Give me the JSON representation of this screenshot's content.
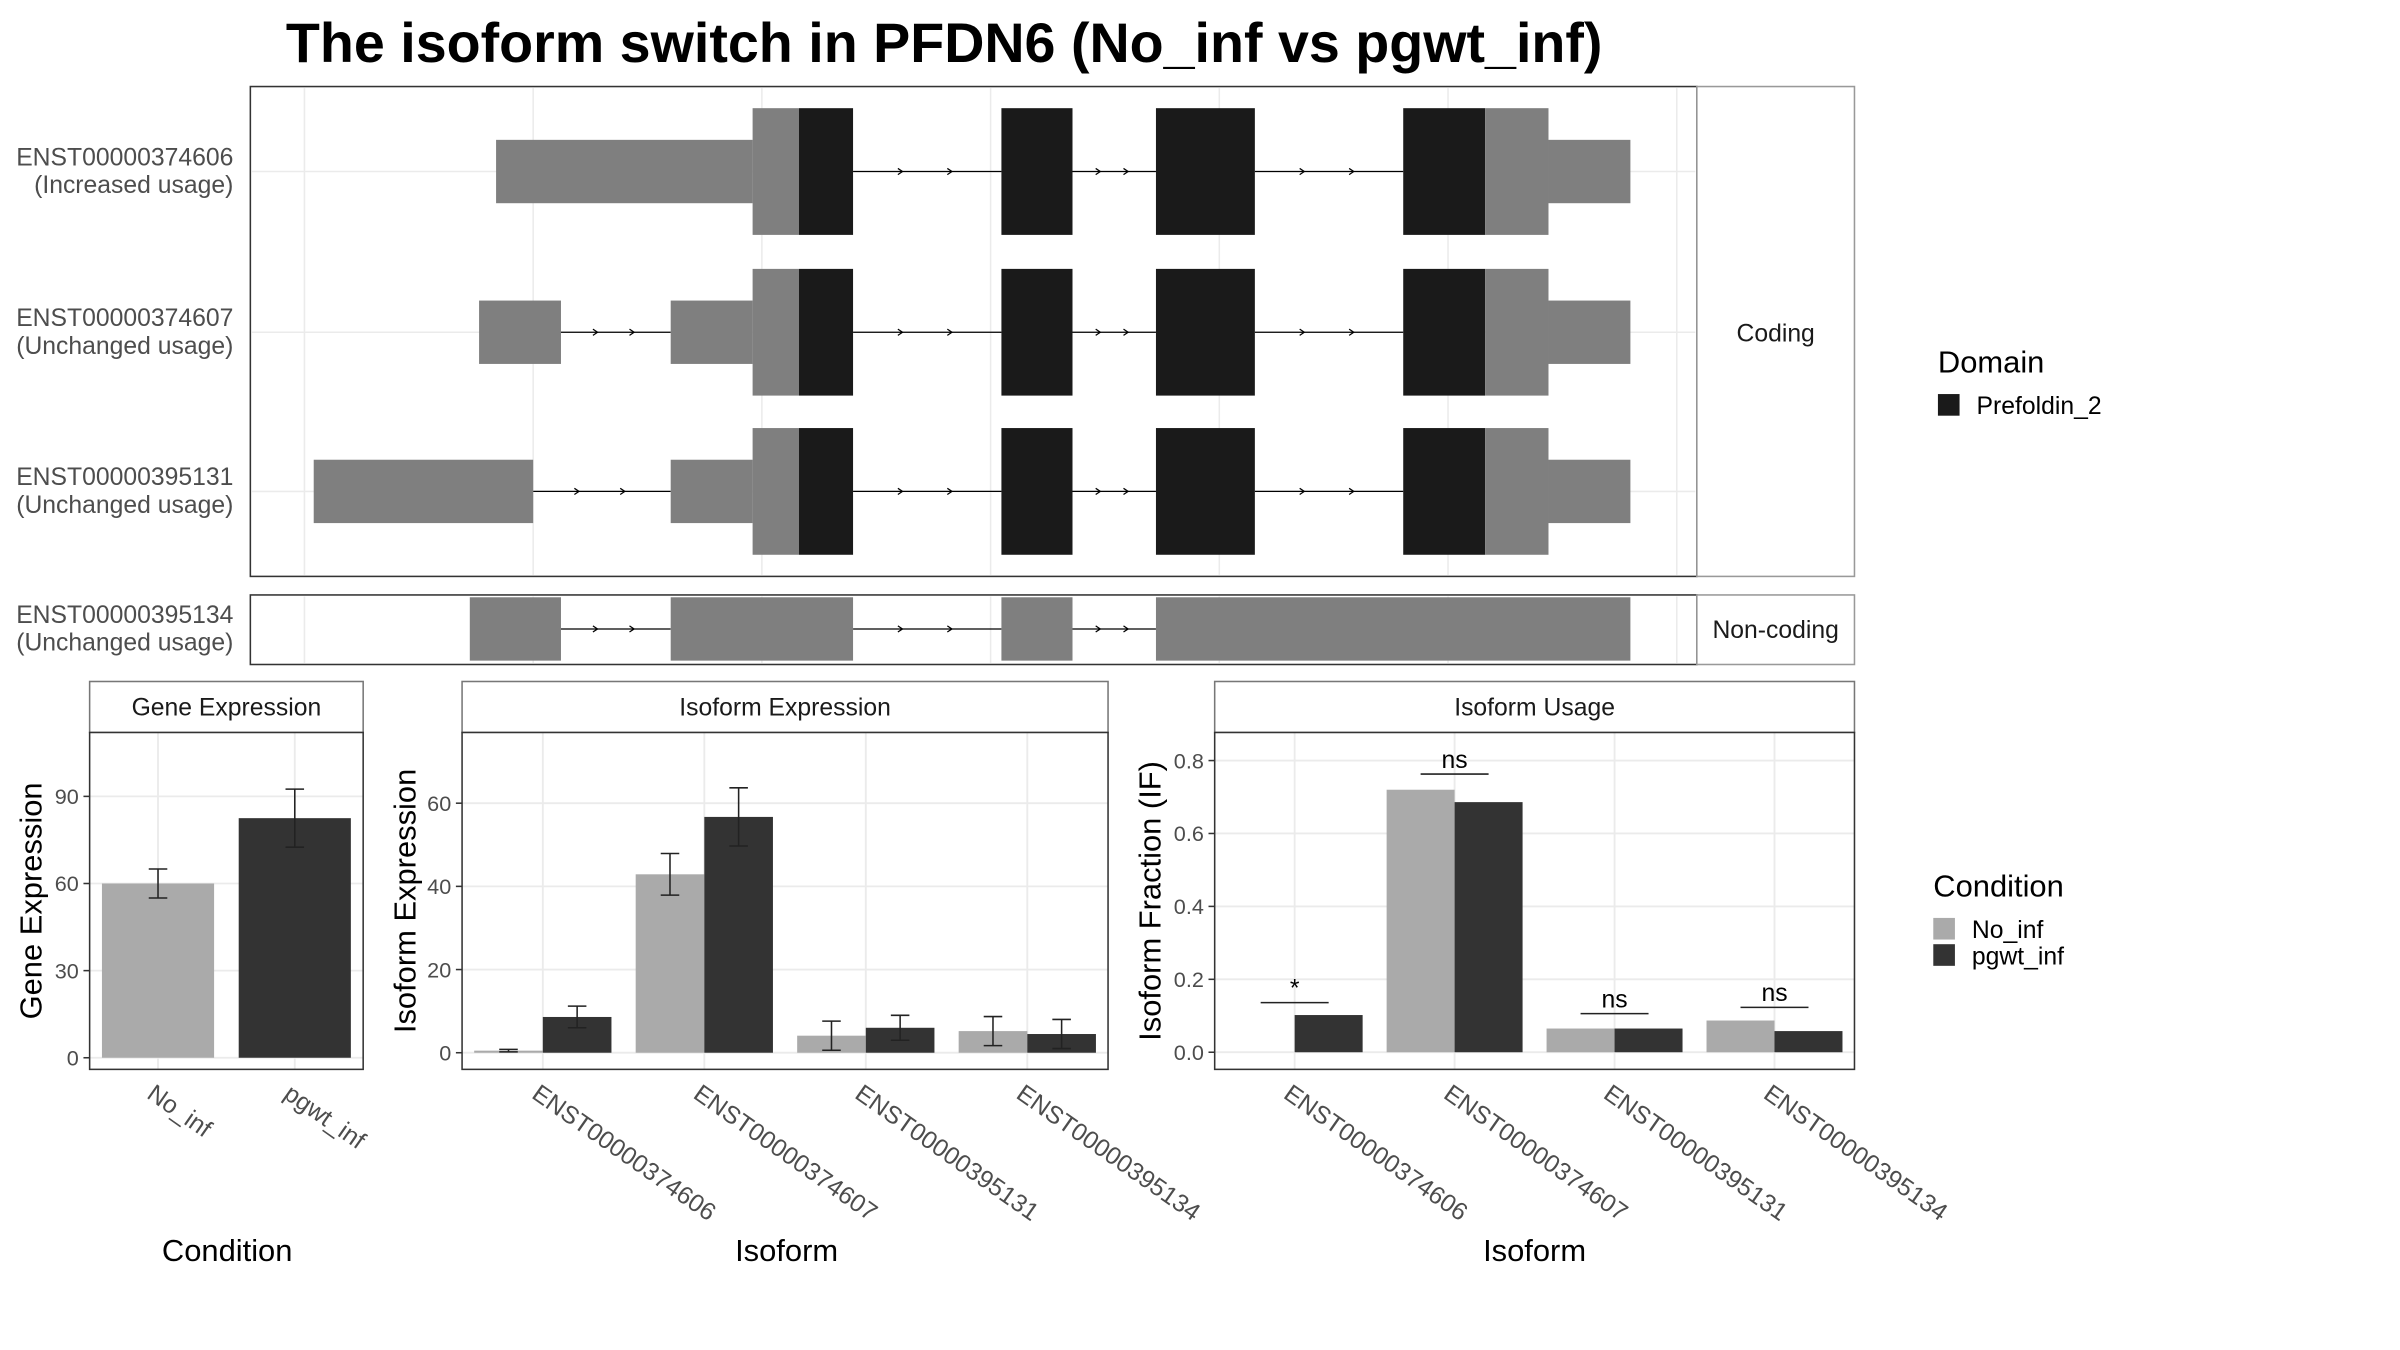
{
  "title": "The isoform switch in PFDN6 (No_inf vs pgwt_inf)",
  "chart_data": [
    {
      "type": "isoform-structure",
      "isoforms": [
        {
          "id": "ENST00000374606",
          "usage": "(Increased usage)",
          "group": "Coding"
        },
        {
          "id": "ENST00000374607",
          "usage": "(Unchanged usage)",
          "group": "Coding"
        },
        {
          "id": "ENST00000395131",
          "usage": "(Unchanged usage)",
          "group": "Coding"
        },
        {
          "id": "ENST00000395134",
          "usage": "(Unchanged usage)",
          "group": "Non-coding"
        }
      ],
      "legend_title": "Domain",
      "domains": [
        {
          "name": "Prefoldin_2",
          "color": "#1a1a1a"
        }
      ]
    },
    {
      "type": "bar",
      "title": "Gene Expression",
      "x_label": "Condition",
      "y_label": "Gene Expression",
      "categories": [
        "No_inf",
        "pgwt_inf"
      ],
      "values": [
        60,
        82.5
      ],
      "errors": [
        5,
        10
      ],
      "colors": [
        "#aaaaaa",
        "#333333"
      ],
      "ylim": [
        -4,
        112
      ],
      "yticks": [
        0,
        30,
        60,
        90
      ],
      "grid": true
    },
    {
      "type": "bar",
      "title": "Isoform Expression",
      "x_label": "Isoform",
      "y_label": "Isoform Expression",
      "categories": [
        "ENST00000374606",
        "ENST00000374607",
        "ENST00000395131",
        "ENST00000395134"
      ],
      "series": [
        {
          "name": "No_inf",
          "color": "#aaaaaa",
          "values": [
            0.5,
            42.9,
            4.1,
            5.2
          ],
          "errors": [
            0.3,
            5,
            3.5,
            3.5
          ]
        },
        {
          "name": "pgwt_inf",
          "color": "#333333",
          "values": [
            8.6,
            56.7,
            6,
            4.5
          ],
          "errors": [
            2.6,
            7,
            3,
            3.5
          ]
        }
      ],
      "ylim": [
        -4,
        77
      ],
      "yticks": [
        0,
        20,
        40,
        60
      ],
      "grid": true
    },
    {
      "type": "bar",
      "title": "Isoform Usage",
      "x_label": "Isoform",
      "y_label": "Isoform Fraction (IF)",
      "categories": [
        "ENST00000374606",
        "ENST00000374607",
        "ENST00000395131",
        "ENST00000395134"
      ],
      "series": [
        {
          "name": "No_inf",
          "color": "#aaaaaa",
          "values": [
            0,
            0.72,
            0.065,
            0.087
          ]
        },
        {
          "name": "pgwt_inf",
          "color": "#333333",
          "values": [
            0.102,
            0.686,
            0.065,
            0.058
          ]
        }
      ],
      "significance": [
        {
          "label": "*",
          "y": 0.136
        },
        {
          "label": "ns",
          "y": 0.763
        },
        {
          "label": "ns",
          "y": 0.106
        },
        {
          "label": "ns",
          "y": 0.123
        }
      ],
      "ylim": [
        -0.047,
        0.877
      ],
      "yticks": [
        {
          "value": 0,
          "label": "0.0"
        },
        0.2,
        0.4,
        0.6,
        0.8
      ],
      "grid": true,
      "legend_title": "Condition"
    }
  ]
}
